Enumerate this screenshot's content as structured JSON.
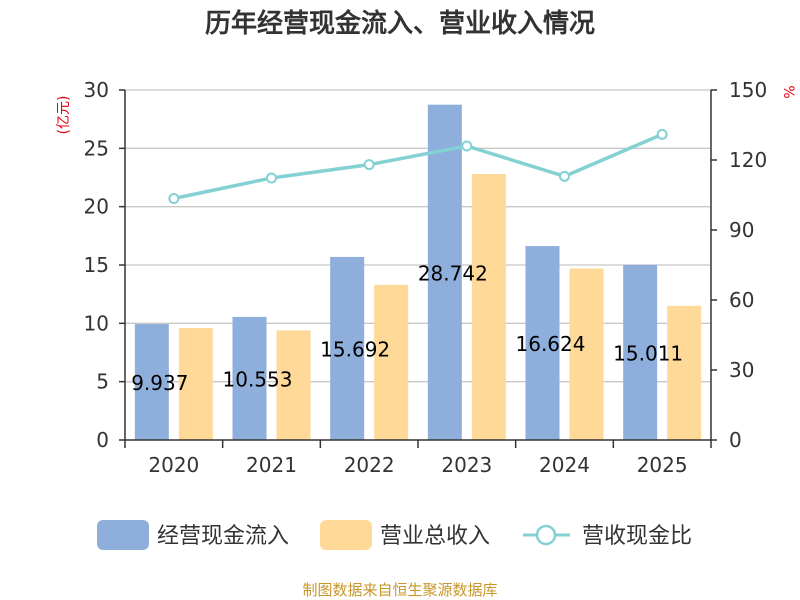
{
  "chart_data": {
    "type": "bar",
    "title": "历年经营现金流入、营业收入情况",
    "categories": [
      "2020",
      "2021",
      "2022",
      "2023",
      "2024",
      "2025"
    ],
    "series": [
      {
        "name": "经营现金流入",
        "type": "bar",
        "axis": "left",
        "color": "#8eaedb",
        "values": [
          9.937,
          10.553,
          15.692,
          28.742,
          16.624,
          15.011
        ],
        "labels": [
          "9.937",
          "10.553",
          "15.692",
          "28.742",
          "16.624",
          "15.011"
        ]
      },
      {
        "name": "营业总收入",
        "type": "bar",
        "axis": "left",
        "color": "#ffd997",
        "values": [
          9.6,
          9.4,
          13.3,
          22.8,
          14.7,
          11.5
        ]
      },
      {
        "name": "营收现金比",
        "type": "line",
        "axis": "right",
        "color": "#84d1d4",
        "values": [
          103.5,
          112.3,
          118.0,
          126.0,
          113.0,
          131.0
        ]
      }
    ],
    "y_left": {
      "unit": "(亿元)",
      "ylim": [
        0,
        30
      ],
      "ticks": [
        "0",
        "5",
        "10",
        "15",
        "20",
        "25",
        "30"
      ]
    },
    "y_right": {
      "unit": "%",
      "ylim": [
        0,
        150
      ],
      "ticks": [
        "0",
        "30",
        "60",
        "90",
        "120",
        "150"
      ]
    },
    "grid": true,
    "legend_position": "bottom"
  },
  "footer": {
    "source": "制图数据来自恒生聚源数据库"
  }
}
